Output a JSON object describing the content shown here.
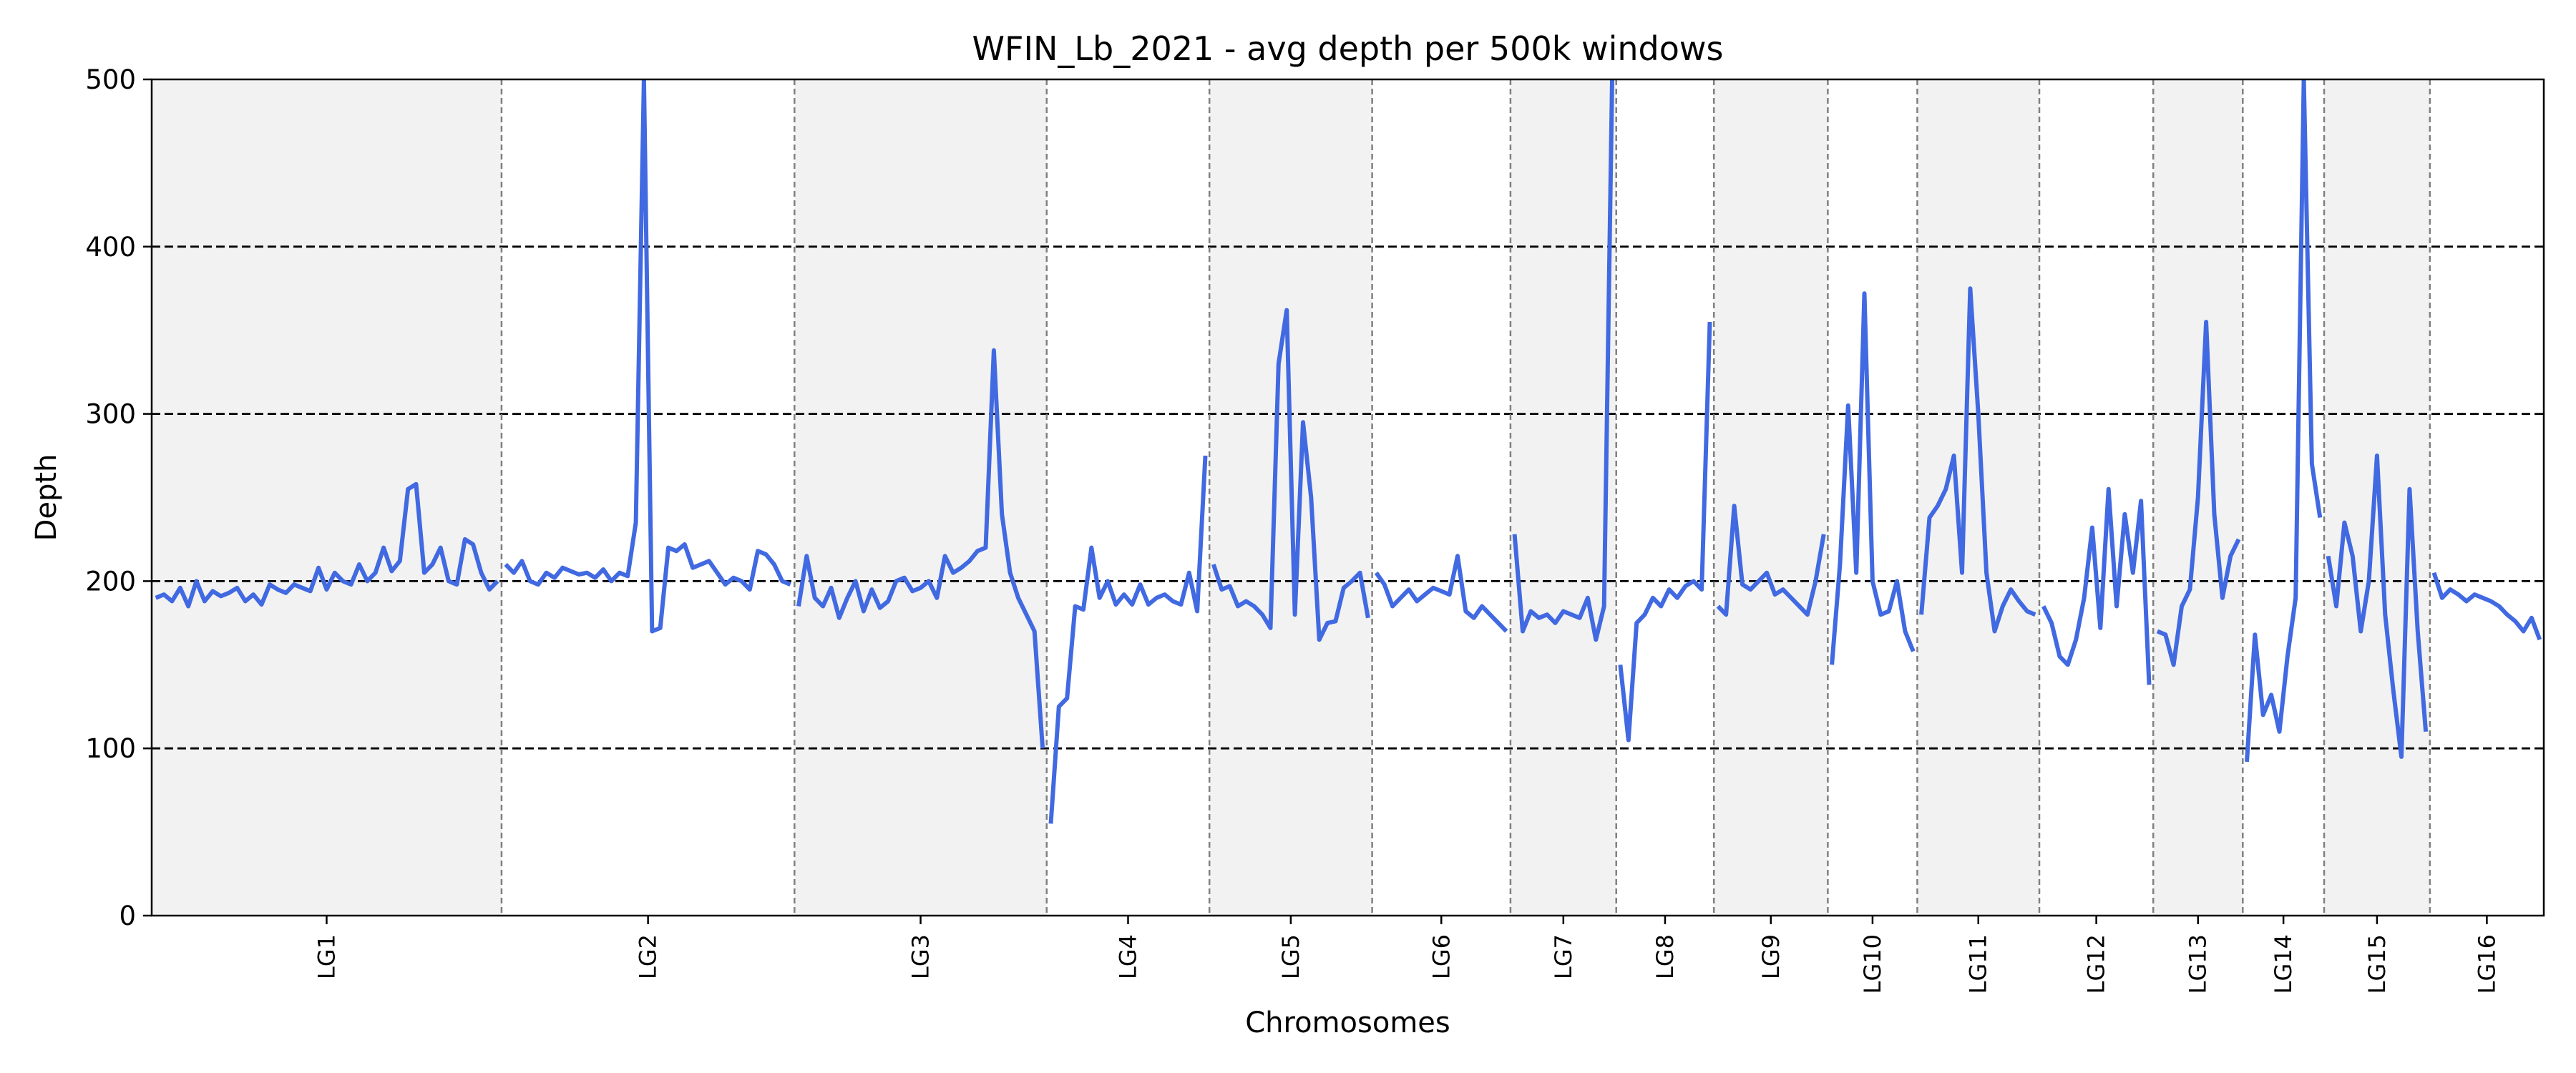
{
  "chart_data": {
    "type": "line",
    "title": "WFIN_Lb_2021 - avg depth per 500k windows",
    "xlabel": "Chromosomes",
    "ylabel": "Depth",
    "ylim": [
      0,
      500
    ],
    "yticks": [
      0,
      100,
      200,
      300,
      400,
      500
    ],
    "reference_lines": [
      100,
      200,
      300,
      400
    ],
    "line_color": "#4169e1",
    "shade_color": "#f2f2f2",
    "chromosomes": [
      {
        "name": "LG1",
        "windows": 43,
        "values": [
          190,
          192,
          188,
          196,
          185,
          200,
          188,
          194,
          191,
          193,
          196,
          188,
          192,
          186,
          198,
          195,
          193,
          198,
          196,
          194,
          208,
          195,
          205,
          200,
          198,
          210,
          200,
          205,
          220,
          206,
          212,
          255,
          258,
          205,
          210,
          220,
          200,
          198,
          225,
          222,
          205,
          195,
          200
        ]
      },
      {
        "name": "LG2",
        "windows": 36,
        "values": [
          210,
          205,
          212,
          200,
          198,
          205,
          202,
          208,
          206,
          204,
          205,
          202,
          207,
          200,
          205,
          203,
          235,
          500,
          170,
          172,
          220,
          218,
          222,
          208,
          210,
          212,
          205,
          198,
          202,
          200,
          195,
          218,
          216,
          210,
          200,
          198
        ]
      },
      {
        "name": "LG3",
        "windows": 31,
        "values": [
          185,
          215,
          190,
          185,
          196,
          178,
          190,
          200,
          182,
          195,
          184,
          188,
          200,
          202,
          194,
          196,
          200,
          190,
          215,
          205,
          208,
          212,
          218,
          220,
          338,
          240,
          205,
          190,
          180,
          170,
          100
        ]
      },
      {
        "name": "LG4",
        "windows": 20,
        "values": [
          55,
          125,
          130,
          185,
          183,
          220,
          190,
          200,
          186,
          192,
          186,
          198,
          186,
          190,
          192,
          188,
          186,
          205,
          182,
          275
        ]
      },
      {
        "name": "LG5",
        "windows": 20,
        "values": [
          210,
          195,
          197,
          185,
          188,
          185,
          180,
          172,
          330,
          362,
          180,
          295,
          250,
          165,
          175,
          176,
          196,
          200,
          205,
          178
        ]
      },
      {
        "name": "LG6",
        "windows": 17,
        "values": [
          205,
          198,
          185,
          190,
          195,
          188,
          192,
          196,
          194,
          192,
          215,
          182,
          178,
          185,
          180,
          175,
          170
        ]
      },
      {
        "name": "LG7",
        "windows": 13,
        "values": [
          228,
          170,
          182,
          178,
          180,
          175,
          182,
          180,
          178,
          190,
          165,
          185,
          500
        ]
      },
      {
        "name": "LG8",
        "windows": 12,
        "values": [
          150,
          105,
          175,
          180,
          190,
          185,
          195,
          190,
          197,
          200,
          195,
          355
        ]
      },
      {
        "name": "LG9",
        "windows": 14,
        "values": [
          185,
          180,
          245,
          198,
          195,
          200,
          205,
          192,
          195,
          190,
          185,
          180,
          200,
          228
        ]
      },
      {
        "name": "LG10",
        "windows": 11,
        "values": [
          150,
          210,
          305,
          205,
          372,
          200,
          180,
          182,
          200,
          170,
          158
        ]
      },
      {
        "name": "LG11",
        "windows": 15,
        "values": [
          180,
          238,
          245,
          255,
          275,
          205,
          375,
          300,
          205,
          170,
          185,
          195,
          188,
          182,
          180
        ]
      },
      {
        "name": "LG12",
        "windows": 14,
        "values": [
          185,
          175,
          155,
          150,
          165,
          190,
          232,
          172,
          255,
          185,
          240,
          205,
          248,
          138
        ]
      },
      {
        "name": "LG13",
        "windows": 11,
        "values": [
          170,
          168,
          150,
          185,
          195,
          250,
          355,
          240,
          190,
          215,
          225
        ]
      },
      {
        "name": "LG14",
        "windows": 10,
        "values": [
          92,
          168,
          120,
          132,
          110,
          155,
          190,
          500,
          270,
          238
        ]
      },
      {
        "name": "LG15",
        "windows": 13,
        "values": [
          215,
          185,
          235,
          215,
          170,
          200,
          275,
          180,
          135,
          95,
          255,
          170,
          110
        ]
      },
      {
        "name": "LG16",
        "windows": 14,
        "values": [
          205,
          190,
          195,
          192,
          188,
          192,
          190,
          188,
          185,
          180,
          176,
          170,
          178,
          165
        ]
      }
    ]
  }
}
